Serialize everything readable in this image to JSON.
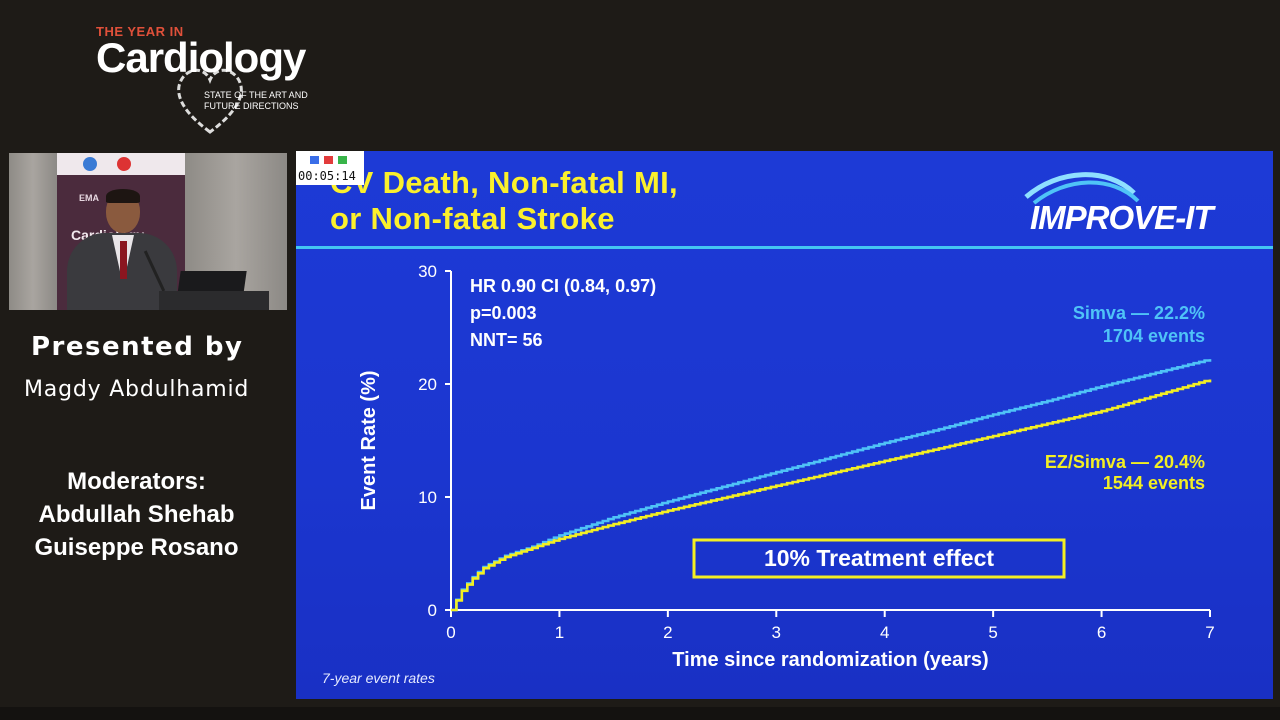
{
  "branding": {
    "year_label": "THE YEAR IN",
    "wordmark": "Cardiology",
    "tagline_1": "STATE OF THE ART AND",
    "tagline_2": "FUTURE DIRECTIONS"
  },
  "presenter": {
    "heading": "Presented by",
    "name": "Magdy Abdulhamid"
  },
  "moderators": {
    "heading": "Moderators:",
    "names": [
      "Abdullah Shehab",
      "Guiseppe Rosano"
    ]
  },
  "webcam": {
    "banner_text": "Cardiology",
    "banner_org": "EMA"
  },
  "timer": {
    "elapsed": "00:05:14"
  },
  "slide": {
    "title_line_1": "CV Death, Non-fatal MI,",
    "title_line_2": "or Non-fatal Stroke",
    "logo_text": "IMPROVE-IT",
    "stats": [
      "HR 0.90 CI (0.84, 0.97)",
      "p=0.003",
      "NNT= 56"
    ],
    "simva_label_1": "Simva — 22.2%",
    "simva_label_2": "1704 events",
    "ez_label_1": "EZ/Simva — 20.4%",
    "ez_label_2": "1544 events",
    "effect_box": "10% Treatment effect",
    "footnote": "7-year event rates",
    "colors": {
      "background": "#1d3ad6",
      "title": "#fbf02c",
      "simva": "#4fc3f7",
      "ez_simva": "#f3ef23",
      "rule": "#44c6f2"
    }
  },
  "chart_data": {
    "type": "line",
    "xlabel": "Time since randomization (years)",
    "ylabel": "Event Rate (%)",
    "xlim": [
      0,
      7
    ],
    "ylim": [
      0,
      30
    ],
    "xticks": [
      0,
      1,
      2,
      3,
      4,
      5,
      6,
      7
    ],
    "yticks": [
      0,
      10,
      20,
      30
    ],
    "step": true,
    "series": [
      {
        "name": "Simva",
        "color": "#4fc3f7",
        "x": [
          0,
          0.1,
          0.2,
          0.3,
          0.5,
          0.75,
          1,
          1.5,
          2,
          2.5,
          3,
          3.5,
          4,
          4.5,
          5,
          5.5,
          6,
          6.5,
          7
        ],
        "y": [
          0,
          1.8,
          2.9,
          3.8,
          4.8,
          5.6,
          6.6,
          8.2,
          9.6,
          10.9,
          12.2,
          13.5,
          14.8,
          16.0,
          17.3,
          18.5,
          19.8,
          21.0,
          22.2
        ]
      },
      {
        "name": "EZ/Simva",
        "color": "#f3ef23",
        "x": [
          0,
          0.1,
          0.2,
          0.3,
          0.5,
          0.75,
          1,
          1.5,
          2,
          2.5,
          3,
          3.5,
          4,
          4.5,
          5,
          5.5,
          6,
          6.5,
          7
        ],
        "y": [
          0,
          1.7,
          2.8,
          3.7,
          4.7,
          5.5,
          6.3,
          7.6,
          8.8,
          9.9,
          11.0,
          12.1,
          13.2,
          14.3,
          15.4,
          16.5,
          17.6,
          19.0,
          20.4
        ]
      }
    ]
  }
}
